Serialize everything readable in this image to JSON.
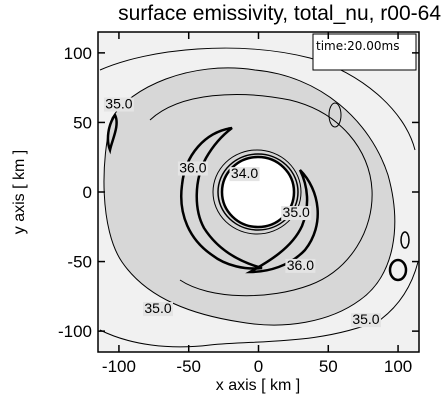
{
  "chart_data": {
    "type": "contour",
    "title": "surface emissivity, total_nu, r00-64",
    "xlabel": "x axis [ km ]",
    "ylabel": "y axis [ km ]",
    "xlim": [
      -115,
      115
    ],
    "ylim": [
      -115,
      115
    ],
    "x_ticks": [
      -100,
      -50,
      0,
      50,
      100
    ],
    "y_ticks": [
      -100,
      -50,
      0,
      50,
      100
    ],
    "x_tick_labels": [
      "-100",
      "-50",
      "0",
      "50",
      "100"
    ],
    "y_tick_labels": [
      "-100",
      "-50",
      "0",
      "50",
      "100"
    ],
    "annotation": "time:20.00ms",
    "contour_levels": [
      {
        "value": 35.0,
        "label": "35.0"
      },
      {
        "value": 36.0,
        "label": "36.0"
      }
    ],
    "contour_labels": [
      {
        "text": "35.0",
        "x": -100,
        "y": 60
      },
      {
        "text": "36.0",
        "x": -47,
        "y": 14
      },
      {
        "text": "34.0",
        "x": -10,
        "y": 10
      },
      {
        "text": "35.0",
        "x": 27,
        "y": -18
      },
      {
        "text": "36.0",
        "x": 30,
        "y": -56
      },
      {
        "text": "35.0",
        "x": -72,
        "y": -87
      },
      {
        "text": "35.0",
        "x": 77,
        "y": -95
      }
    ],
    "colors": {
      "fill_high": "#d7d7d7",
      "fill_low": "#f1f1f1",
      "line": "#000000"
    }
  }
}
